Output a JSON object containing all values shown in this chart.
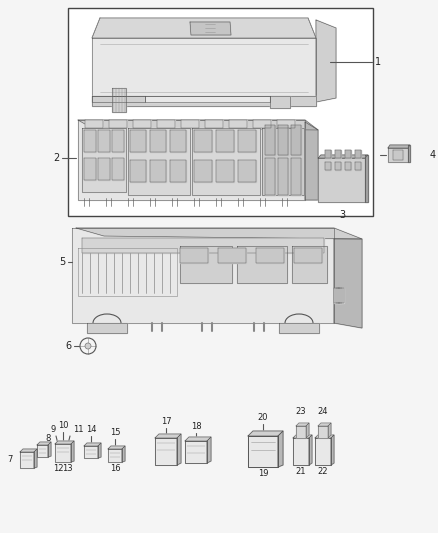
{
  "fig_width": 4.38,
  "fig_height": 5.33,
  "dpi": 100,
  "bg": "#f5f5f5",
  "lc": "#555555",
  "fc_light": "#e8e8e8",
  "fc_mid": "#d0d0d0",
  "fc_dark": "#b8b8b8",
  "fc_xdark": "#a0a0a0",
  "white": "#ffffff",
  "lw_main": 0.8,
  "lw_thin": 0.4,
  "label_fs": 7,
  "small_fs": 6
}
